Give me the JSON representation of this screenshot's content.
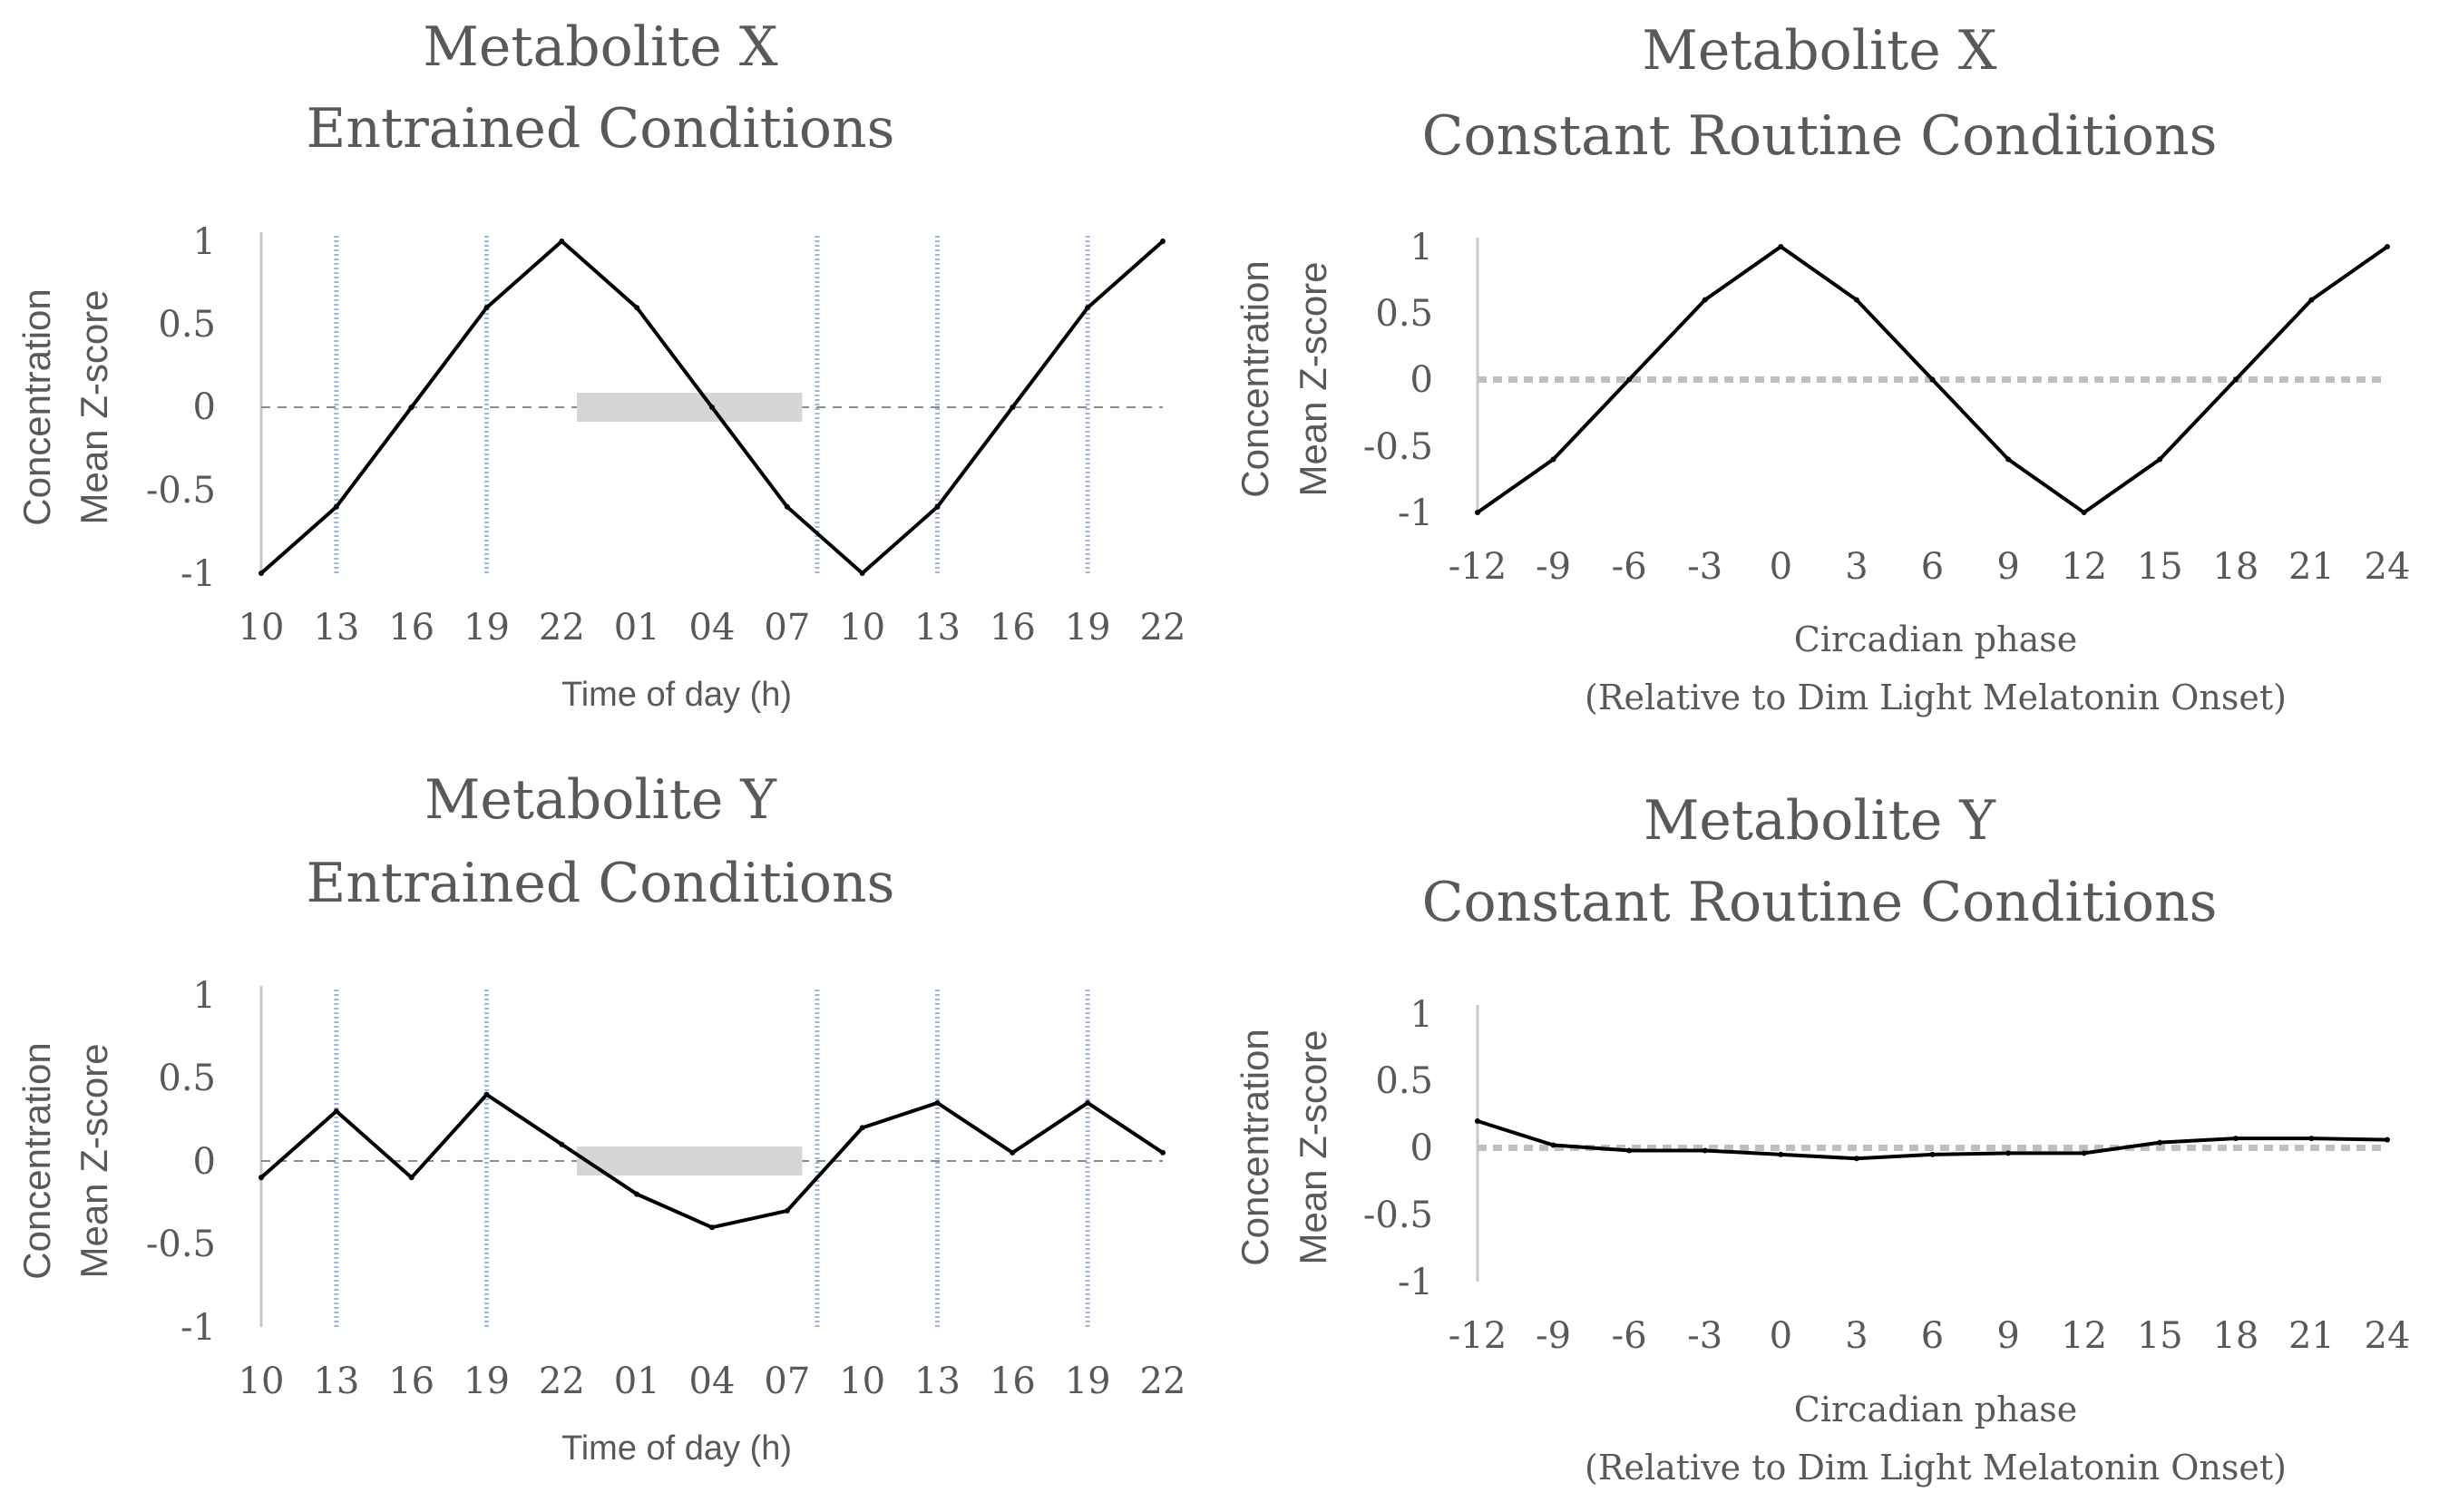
{
  "chart_data": [
    {
      "type": "line",
      "title": [
        "Metabolite X",
        "Entrained Conditions"
      ],
      "ylabel": [
        "Concentration",
        "Mean Z-score"
      ],
      "xlabel": [
        "Time of day (h)"
      ],
      "categories": [
        "10",
        "13",
        "16",
        "19",
        "22",
        "01",
        "04",
        "07",
        "10",
        "13",
        "16",
        "19",
        "22"
      ],
      "values": [
        -1,
        -0.6,
        0,
        0.6,
        1,
        0.6,
        0,
        -0.6,
        -1,
        -0.6,
        0,
        0.6,
        1
      ],
      "yticks": [
        "1",
        "0.5",
        "0",
        "-0.5",
        "-1"
      ],
      "ylim": [
        -1,
        1
      ],
      "zero_line": "dashed",
      "vertical_markers_at": [
        1,
        3,
        7.4,
        9,
        11
      ],
      "sleep_bar": {
        "from": 4.2,
        "to": 7.2
      }
    },
    {
      "type": "line",
      "title": [
        "Metabolite X",
        "Constant Routine Conditions"
      ],
      "ylabel": [
        "Concentration",
        "Mean Z-score"
      ],
      "xlabel": [
        "Circadian phase",
        "(Relative to Dim Light Melatonin Onset)"
      ],
      "categories": [
        "-12",
        "-9",
        "-6",
        "-3",
        "0",
        "3",
        "6",
        "9",
        "12",
        "15",
        "18",
        "21",
        "24"
      ],
      "values": [
        -1,
        -0.6,
        0,
        0.6,
        1,
        0.6,
        0,
        -0.6,
        -1,
        -0.6,
        0,
        0.6,
        1
      ],
      "yticks": [
        "1",
        "0.5",
        "0",
        "-0.5",
        "-1"
      ],
      "ylim": [
        -1,
        1
      ],
      "zero_line": "dotted"
    },
    {
      "type": "line",
      "title": [
        "Metabolite Y",
        "Entrained Conditions"
      ],
      "ylabel": [
        "Concentration",
        "Mean Z-score"
      ],
      "xlabel": [
        "Time of day (h)"
      ],
      "categories": [
        "10",
        "13",
        "16",
        "19",
        "22",
        "01",
        "04",
        "07",
        "10",
        "13",
        "16",
        "19",
        "22"
      ],
      "values": [
        -0.1,
        0.3,
        -0.1,
        0.4,
        0.1,
        -0.2,
        -0.4,
        -0.3,
        0.2,
        0.35,
        0.05,
        0.35,
        0.05
      ],
      "yticks": [
        "1",
        "0.5",
        "0",
        "-0.5",
        "-1"
      ],
      "ylim": [
        -1,
        1
      ],
      "zero_line": "dashed",
      "vertical_markers_at": [
        1,
        3,
        7.4,
        9,
        11
      ],
      "sleep_bar": {
        "from": 4.2,
        "to": 7.2
      }
    },
    {
      "type": "line",
      "title": [
        "Metabolite Y",
        "Constant Routine Conditions"
      ],
      "ylabel": [
        "Concentration",
        "Mean Z-score"
      ],
      "xlabel": [
        "Circadian phase",
        "(Relative to Dim Light Melatonin Onset)"
      ],
      "categories": [
        "-12",
        "-9",
        "-6",
        "-3",
        "0",
        "3",
        "6",
        "9",
        "12",
        "15",
        "18",
        "21",
        "24"
      ],
      "values": [
        0.2,
        0.02,
        -0.02,
        -0.02,
        -0.05,
        -0.08,
        -0.05,
        -0.04,
        -0.04,
        0.04,
        0.07,
        0.07,
        0.06
      ],
      "yticks": [
        "1",
        "0.5",
        "0",
        "-0.5",
        "-1"
      ],
      "ylim": [
        -1,
        1
      ],
      "zero_line": "dotted"
    }
  ]
}
